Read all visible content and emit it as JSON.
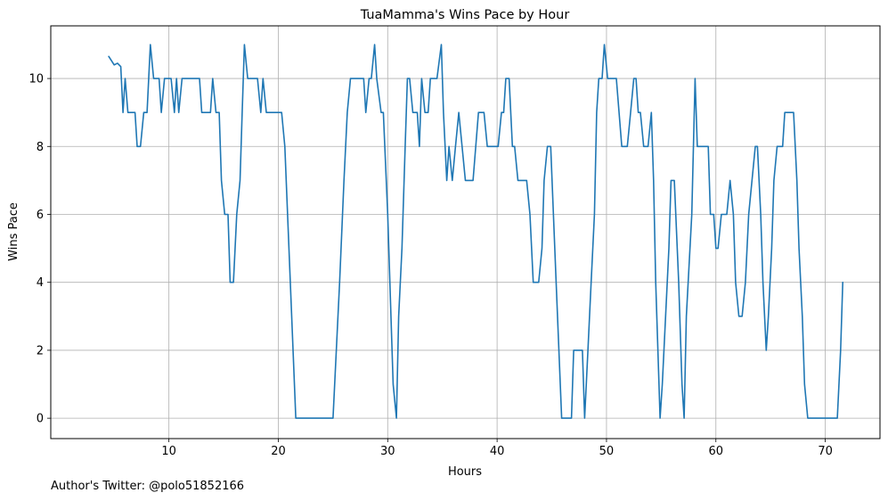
{
  "chart_data": {
    "type": "line",
    "title": "TuaMamma's Wins Pace by Hour",
    "xlabel": "Hours",
    "ylabel": "Wins Pace",
    "xlim": [
      -0.8,
      75.0
    ],
    "ylim": [
      -0.6,
      11.55
    ],
    "xticks": [
      10,
      20,
      30,
      40,
      50,
      60,
      70
    ],
    "yticks": [
      0,
      2,
      4,
      6,
      8,
      10
    ],
    "grid": true,
    "line_color": "#1f77b4",
    "series": [
      {
        "points": [
          [
            4.5,
            10.65
          ],
          [
            5.0,
            10.4
          ],
          [
            5.3,
            10.45
          ],
          [
            5.6,
            10.35
          ],
          [
            5.8,
            9.0
          ],
          [
            6.0,
            10.0
          ],
          [
            6.25,
            9.0
          ],
          [
            6.9,
            9.0
          ],
          [
            7.1,
            8.0
          ],
          [
            7.4,
            8.0
          ],
          [
            7.7,
            9.0
          ],
          [
            8.0,
            9.0
          ],
          [
            8.3,
            11.0
          ],
          [
            8.6,
            10.0
          ],
          [
            9.1,
            10.0
          ],
          [
            9.3,
            9.0
          ],
          [
            9.6,
            10.0
          ],
          [
            10.2,
            10.0
          ],
          [
            10.5,
            9.0
          ],
          [
            10.7,
            10.0
          ],
          [
            10.9,
            9.0
          ],
          [
            11.2,
            10.0
          ],
          [
            12.8,
            10.0
          ],
          [
            13.0,
            9.0
          ],
          [
            13.8,
            9.0
          ],
          [
            14.0,
            10.0
          ],
          [
            14.3,
            9.0
          ],
          [
            14.6,
            9.0
          ],
          [
            14.8,
            7.0
          ],
          [
            15.1,
            6.0
          ],
          [
            15.4,
            6.0
          ],
          [
            15.6,
            4.0
          ],
          [
            15.9,
            4.0
          ],
          [
            16.2,
            6.0
          ],
          [
            16.5,
            7.0
          ],
          [
            16.7,
            9.0
          ],
          [
            16.9,
            11.0
          ],
          [
            17.2,
            10.0
          ],
          [
            18.1,
            10.0
          ],
          [
            18.4,
            9.0
          ],
          [
            18.6,
            10.0
          ],
          [
            18.9,
            9.0
          ],
          [
            20.3,
            9.0
          ],
          [
            20.6,
            8.0
          ],
          [
            21.6,
            0.0
          ],
          [
            25.0,
            0.0
          ],
          [
            25.6,
            4.0
          ],
          [
            26.0,
            7.0
          ],
          [
            26.3,
            9.0
          ],
          [
            26.6,
            10.0
          ],
          [
            27.8,
            10.0
          ],
          [
            28.0,
            9.0
          ],
          [
            28.3,
            10.0
          ],
          [
            28.5,
            10.0
          ],
          [
            28.8,
            11.0
          ],
          [
            29.0,
            10.0
          ],
          [
            29.4,
            9.0
          ],
          [
            29.6,
            9.0
          ],
          [
            30.0,
            6.0
          ],
          [
            30.5,
            1.0
          ],
          [
            30.8,
            0.0
          ],
          [
            31.0,
            3.0
          ],
          [
            31.3,
            5.0
          ],
          [
            31.6,
            8.0
          ],
          [
            31.8,
            10.0
          ],
          [
            32.0,
            10.0
          ],
          [
            32.3,
            9.0
          ],
          [
            32.7,
            9.0
          ],
          [
            32.9,
            8.0
          ],
          [
            33.1,
            10.0
          ],
          [
            33.4,
            9.0
          ],
          [
            33.7,
            9.0
          ],
          [
            33.9,
            10.0
          ],
          [
            34.5,
            10.0
          ],
          [
            34.9,
            11.0
          ],
          [
            35.1,
            9.0
          ],
          [
            35.4,
            7.0
          ],
          [
            35.6,
            8.0
          ],
          [
            35.9,
            7.0
          ],
          [
            36.2,
            8.0
          ],
          [
            36.5,
            9.0
          ],
          [
            36.8,
            8.0
          ],
          [
            37.1,
            7.0
          ],
          [
            37.8,
            7.0
          ],
          [
            38.3,
            9.0
          ],
          [
            38.8,
            9.0
          ],
          [
            39.1,
            8.0
          ],
          [
            40.1,
            8.0
          ],
          [
            40.4,
            9.0
          ],
          [
            40.6,
            9.0
          ],
          [
            40.8,
            10.0
          ],
          [
            41.1,
            10.0
          ],
          [
            41.4,
            8.0
          ],
          [
            41.6,
            8.0
          ],
          [
            41.9,
            7.0
          ],
          [
            42.7,
            7.0
          ],
          [
            43.0,
            6.0
          ],
          [
            43.3,
            4.0
          ],
          [
            43.8,
            4.0
          ],
          [
            44.1,
            5.0
          ],
          [
            44.3,
            7.0
          ],
          [
            44.6,
            8.0
          ],
          [
            44.9,
            8.0
          ],
          [
            45.4,
            4.0
          ],
          [
            45.9,
            0.0
          ],
          [
            46.8,
            0.0
          ],
          [
            47.0,
            2.0
          ],
          [
            47.8,
            2.0
          ],
          [
            48.0,
            0.0
          ],
          [
            48.3,
            2.0
          ],
          [
            48.6,
            4.0
          ],
          [
            48.9,
            6.0
          ],
          [
            49.1,
            9.0
          ],
          [
            49.3,
            10.0
          ],
          [
            49.6,
            10.0
          ],
          [
            49.8,
            11.0
          ],
          [
            50.1,
            10.0
          ],
          [
            50.9,
            10.0
          ],
          [
            51.4,
            8.0
          ],
          [
            51.9,
            8.0
          ],
          [
            52.2,
            9.0
          ],
          [
            52.5,
            10.0
          ],
          [
            52.7,
            10.0
          ],
          [
            52.9,
            9.0
          ],
          [
            53.1,
            9.0
          ],
          [
            53.4,
            8.0
          ],
          [
            53.8,
            8.0
          ],
          [
            54.1,
            9.0
          ],
          [
            54.3,
            7.0
          ],
          [
            54.5,
            4.0
          ],
          [
            54.9,
            0.0
          ],
          [
            55.1,
            1.0
          ],
          [
            55.4,
            3.0
          ],
          [
            55.7,
            5.0
          ],
          [
            55.9,
            7.0
          ],
          [
            56.2,
            7.0
          ],
          [
            56.6,
            4.0
          ],
          [
            56.9,
            1.0
          ],
          [
            57.1,
            0.0
          ],
          [
            57.3,
            3.0
          ],
          [
            57.8,
            6.0
          ],
          [
            58.1,
            10.0
          ],
          [
            58.3,
            8.0
          ],
          [
            59.3,
            8.0
          ],
          [
            59.5,
            6.0
          ],
          [
            59.8,
            6.0
          ],
          [
            60.0,
            5.0
          ],
          [
            60.2,
            5.0
          ],
          [
            60.5,
            6.0
          ],
          [
            60.7,
            6.0
          ],
          [
            61.0,
            6.0
          ],
          [
            61.3,
            7.0
          ],
          [
            61.6,
            6.0
          ],
          [
            61.8,
            4.0
          ],
          [
            62.1,
            3.0
          ],
          [
            62.4,
            3.0
          ],
          [
            62.7,
            4.0
          ],
          [
            63.0,
            6.0
          ],
          [
            63.3,
            7.0
          ],
          [
            63.6,
            8.0
          ],
          [
            63.8,
            8.0
          ],
          [
            64.1,
            6.0
          ],
          [
            64.3,
            4.0
          ],
          [
            64.6,
            2.0
          ],
          [
            64.8,
            3.0
          ],
          [
            65.1,
            5.0
          ],
          [
            65.3,
            7.0
          ],
          [
            65.6,
            8.0
          ],
          [
            66.1,
            8.0
          ],
          [
            66.3,
            9.0
          ],
          [
            67.1,
            9.0
          ],
          [
            67.4,
            7.0
          ],
          [
            67.6,
            5.0
          ],
          [
            67.9,
            3.0
          ],
          [
            68.1,
            1.0
          ],
          [
            68.4,
            0.0
          ],
          [
            71.1,
            0.0
          ],
          [
            71.4,
            2.0
          ],
          [
            71.6,
            4.0
          ]
        ]
      }
    ]
  },
  "footer": {
    "credit": "Author's Twitter: @polo51852166"
  }
}
